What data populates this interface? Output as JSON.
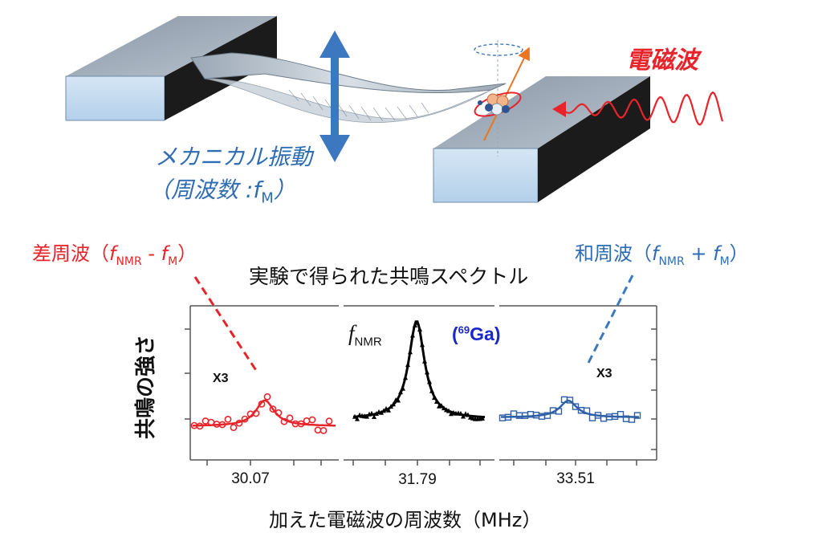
{
  "top": {
    "em_wave_label": "電磁波",
    "vibration_label_line1": "メカニカル振動",
    "vibration_label_line2_prefix": "（周波数 :",
    "vibration_label_line2_f": "f",
    "vibration_label_line2_sub": "M",
    "vibration_label_line2_suffix": "）"
  },
  "annotations": {
    "diff_prefix": "差周波（",
    "diff_f1": "f",
    "diff_sub1": "NMR",
    "diff_op": " - ",
    "diff_f2": "f",
    "diff_sub2": "M",
    "diff_suffix": "）",
    "sum_prefix": "和周波（",
    "sum_f1": "f",
    "sum_sub1": "NMR",
    "sum_op": " + ",
    "sum_f2": "f",
    "sum_sub2": "M",
    "sum_suffix": "）"
  },
  "chart": {
    "title": "実験で得られた共鳴スペクトル",
    "ylabel": "共鳴の強さ",
    "xlabel": "加えた電磁波の周波数（MHz）",
    "center_f": "f",
    "center_sub": "NMR",
    "isotope_sup": "69",
    "isotope_label": "Ga",
    "isotope_open": "(",
    "isotope_close": ")",
    "left_multiplier": "X3",
    "right_multiplier": "X3"
  },
  "chart_data": {
    "type": "scatter",
    "title": "実験で得られた共鳴スペクトル",
    "ylabel": "共鳴の強さ",
    "xlabel": "加えた電磁波の周波数（MHz）",
    "panels": [
      {
        "name": "差周波",
        "center": "30.07",
        "color": "#e8242a",
        "marker": "circle",
        "multiplier": "X3",
        "peak_relative": 0.48
      },
      {
        "name": "f_NMR (69Ga)",
        "center": "31.79",
        "color": "#000000",
        "marker": "triangle",
        "multiplier": "",
        "peak_relative": 1.0
      },
      {
        "name": "和周波",
        "center": "33.51",
        "color": "#2e5fa8",
        "marker": "square",
        "multiplier": "X3",
        "peak_relative": 0.38
      }
    ],
    "x_ticks": [
      "30.07",
      "31.79",
      "33.51"
    ]
  },
  "colors": {
    "red": "#e8242a",
    "blue": "#2e6db4",
    "navy": "#2f5496",
    "bright_blue": "#1b28c8",
    "black": "#000000"
  }
}
